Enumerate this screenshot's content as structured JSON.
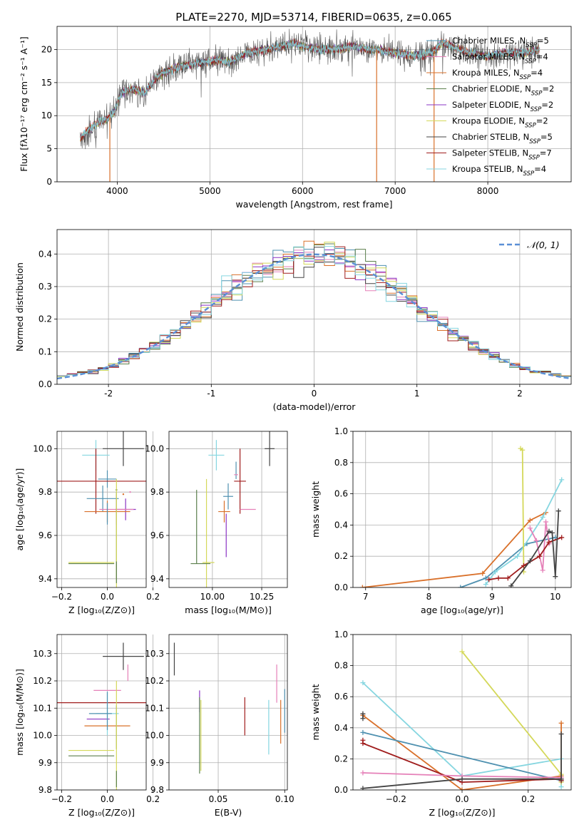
{
  "figure": {
    "title": "PLATE=2270, MJD=53714, FIBERID=0635, z=0.065"
  },
  "colors": {
    "c0": "#4f91b0",
    "c1": "#e580b8",
    "c2": "#d9702a",
    "c3": "#5b7f4c",
    "c4": "#8a34c4",
    "c5": "#d4d85a",
    "c6": "#444444",
    "c7": "#a01d1d",
    "c8": "#86d6e0",
    "normal": "#5a8fd6",
    "grid": "#b0b0b0"
  },
  "chart_data": [
    {
      "id": "spectrum",
      "type": "line",
      "xlabel": "wavelength [Angstrom, rest frame]",
      "ylabel": "Flux [fλ10⁻¹⁷ erg cm⁻² s⁻¹ A⁻¹]",
      "xlim": [
        3350,
        8900
      ],
      "ylim": [
        0,
        23.5
      ],
      "xticks": [
        4000,
        5000,
        6000,
        7000,
        8000
      ],
      "yticks": [
        0,
        5,
        10,
        15,
        20
      ],
      "legend_position": "right",
      "legend": [
        "Chabrier MILES, N_SSP=5",
        "Salpeter MILES, N_SSP=4",
        "Kroupa MILES, N_SSP=4",
        "Chabrier ELODIE, N_SSP=2",
        "Salpeter ELODIE, N_SSP=2",
        "Kroupa ELODIE, N_SSP=2",
        "Chabrier STELIB, N_SSP=5",
        "Salpeter STELIB, N_SSP=7",
        "Kroupa STELIB, N_SSP=4"
      ],
      "continuum": [
        [
          3600,
          6.5
        ],
        [
          3700,
          8.0
        ],
        [
          3800,
          9.0
        ],
        [
          3900,
          9.5
        ],
        [
          3960,
          10.5
        ],
        [
          4050,
          13.5
        ],
        [
          4150,
          14.0
        ],
        [
          4300,
          13.5
        ],
        [
          4400,
          15.5
        ],
        [
          4500,
          16.5
        ],
        [
          4700,
          17.5
        ],
        [
          4900,
          18.0
        ],
        [
          5100,
          18.5
        ],
        [
          5200,
          18.0
        ],
        [
          5400,
          19.5
        ],
        [
          5600,
          20.0
        ],
        [
          5800,
          20.5
        ],
        [
          5900,
          21.0
        ],
        [
          6000,
          20.5
        ],
        [
          6200,
          20.0
        ],
        [
          6400,
          20.0
        ],
        [
          6550,
          20.5
        ],
        [
          6700,
          20.0
        ],
        [
          6800,
          20.0
        ],
        [
          7000,
          19.5
        ],
        [
          7200,
          19.0
        ],
        [
          7400,
          19.5
        ],
        [
          7500,
          21.0
        ],
        [
          7600,
          20.5
        ],
        [
          7800,
          19.5
        ],
        [
          8000,
          19.0
        ],
        [
          8200,
          19.5
        ],
        [
          8400,
          19.5
        ],
        [
          8550,
          20.0
        ]
      ],
      "gaps": [
        3920,
        6800,
        7420
      ]
    },
    {
      "id": "residuals",
      "type": "step",
      "xlabel": "(data-model)/error",
      "ylabel": "Normed distribution",
      "xlim": [
        -2.5,
        2.5
      ],
      "ylim": [
        0,
        0.475
      ],
      "xticks": [
        -2,
        -1,
        0,
        1,
        2
      ],
      "yticks": [
        0,
        0.1,
        0.2,
        0.3,
        0.4
      ],
      "bin_width": 0.1,
      "legend_position": "top-right",
      "legend": [
        "𝒩(0, 1)"
      ]
    },
    {
      "id": "age-vs-Z",
      "type": "errorbar",
      "xlabel": "Z [log₁₀(Z/Z⊙)]",
      "ylabel": "age  [log₁₀(age/yr)]",
      "xlim": [
        -0.22,
        0.17
      ],
      "ylim": [
        9.36,
        10.08
      ],
      "xticks": [
        -0.2,
        0.0,
        0.2
      ],
      "xtick_labels": [
        "−0.2",
        "0.0",
        "0.2"
      ],
      "yticks": [
        9.4,
        9.6,
        9.8,
        10.0
      ],
      "points": [
        {
          "c": "c6",
          "x": 0.07,
          "dx": 0.18,
          "y": 10.0,
          "dy": 0.08
        },
        {
          "c": "c8",
          "x": -0.05,
          "dx": 0.12,
          "y": 9.97,
          "dy": 0.07
        },
        {
          "c": "c0",
          "x": 0.0,
          "dx": 0.08,
          "y": 9.86,
          "dy": 0.04
        },
        {
          "c": "c7",
          "x": -0.05,
          "dx": 0.45,
          "y": 9.85,
          "dy": 0.15
        },
        {
          "c": "c3",
          "x": 0.04,
          "dx": 0.0,
          "y": 9.81,
          "dy": 0.0
        },
        {
          "c": "c1",
          "x": 0.1,
          "dx": 0.0,
          "y": 9.8,
          "dy": 0.0
        },
        {
          "c": "c2",
          "x": 0.07,
          "dx": 0.0,
          "y": 9.79,
          "dy": 0.0
        },
        {
          "c": "c0",
          "x": -0.02,
          "dx": 0.14,
          "y": 9.77,
          "dy": 0.06
        },
        {
          "c": "c4",
          "x": 0.08,
          "dx": 0.09,
          "y": 9.72,
          "dy": 0.05
        },
        {
          "c": "c1",
          "x": 0.04,
          "dx": 0.15,
          "y": 9.72,
          "dy": 0.07
        },
        {
          "c": "c2",
          "x": 0.0,
          "dx": 0.2,
          "y": 9.71,
          "dy": 0.05
        },
        {
          "c": "c0",
          "x": 0.0,
          "dx": 0.0,
          "y": 9.7,
          "dy": 0.05
        },
        {
          "c": "c3",
          "x": 0.04,
          "dx": 0.0,
          "y": 9.6,
          "dy": 0.2
        },
        {
          "c": "c5",
          "x": 0.04,
          "dx": 0.0,
          "y": 9.56,
          "dy": 0.3
        },
        {
          "c": "c3",
          "x": -0.07,
          "dx": 0.2,
          "y": 9.47,
          "dy": 0.0
        },
        {
          "c": "c5",
          "x": -0.07,
          "dx": 0.2,
          "y": 9.475,
          "dy": 0.0
        },
        {
          "c": "c3",
          "x": 0.04,
          "dx": 0.0,
          "y": 9.43,
          "dy": 0.05
        }
      ]
    },
    {
      "id": "age-vs-mass",
      "type": "errorbar",
      "xlabel": "mass [log₁₀(M/M⊙)]",
      "ylabel": "",
      "xlim": [
        9.78,
        10.38
      ],
      "ylim": [
        9.36,
        10.08
      ],
      "xticks": [
        10.0,
        10.25
      ],
      "xtick_labels": [
        "10.00",
        "10.25"
      ],
      "yticks": [
        9.4,
        9.6,
        9.8,
        10.0
      ],
      "points": [
        {
          "c": "c6",
          "x": 10.29,
          "dx": 0.05,
          "y": 10.0,
          "dy": 0.08
        },
        {
          "c": "c8",
          "x": 10.02,
          "dx": 0.08,
          "y": 9.97,
          "dy": 0.07
        },
        {
          "c": "c0",
          "x": 10.12,
          "dx": 0.0,
          "y": 9.9,
          "dy": 0.04
        },
        {
          "c": "c1",
          "x": 10.12,
          "dx": 0.02,
          "y": 9.88,
          "dy": 0.0
        },
        {
          "c": "c7",
          "x": 10.14,
          "dx": 0.06,
          "y": 9.85,
          "dy": 0.15
        },
        {
          "c": "c3",
          "x": 9.92,
          "dx": 0.0,
          "y": 9.64,
          "dy": 0.17
        },
        {
          "c": "c0",
          "x": 10.08,
          "dx": 0.05,
          "y": 9.78,
          "dy": 0.06
        },
        {
          "c": "c2",
          "x": 10.06,
          "dx": 0.06,
          "y": 9.71,
          "dy": 0.05
        },
        {
          "c": "c4",
          "x": 10.07,
          "dx": 0.0,
          "y": 9.6,
          "dy": 0.1
        },
        {
          "c": "c1",
          "x": 10.18,
          "dx": 0.08,
          "y": 9.72,
          "dy": 0.0
        },
        {
          "c": "c5",
          "x": 9.97,
          "dx": 0.0,
          "y": 9.58,
          "dy": 0.28
        },
        {
          "c": "c3",
          "x": 9.94,
          "dx": 0.1,
          "y": 9.47,
          "dy": 0.0
        },
        {
          "c": "c5",
          "x": 9.98,
          "dx": 0.06,
          "y": 9.475,
          "dy": 0.0
        }
      ]
    },
    {
      "id": "weight-vs-age",
      "type": "line",
      "xlabel": "age  [log₁₀(age/yr)]",
      "ylabel": "mass weight",
      "xlim": [
        6.8,
        10.25
      ],
      "ylim": [
        0,
        1.0
      ],
      "xticks": [
        7,
        8,
        9,
        10
      ],
      "yticks": [
        0,
        0.2,
        0.4,
        0.6,
        0.8,
        1.0
      ],
      "series": [
        {
          "c": "c2",
          "x": [
            6.95,
            8.85,
            9.6,
            9.85
          ],
          "y": [
            0.0,
            0.09,
            0.43,
            0.48
          ]
        },
        {
          "c": "c0",
          "x": [
            8.5,
            8.9,
            9.55,
            10.0
          ],
          "y": [
            0.0,
            0.06,
            0.28,
            0.32
          ]
        },
        {
          "c": "c8",
          "x": [
            8.9,
            9.05,
            9.4,
            9.8,
            10.1
          ],
          "y": [
            0.02,
            0.1,
            0.2,
            0.45,
            0.69
          ]
        },
        {
          "c": "c5",
          "x": [
            9.45,
            9.48,
            9.5
          ],
          "y": [
            0.89,
            0.88,
            0.1
          ]
        },
        {
          "c": "c1",
          "x": [
            9.6,
            9.7,
            9.8,
            9.85,
            9.9
          ],
          "y": [
            0.38,
            0.3,
            0.11,
            0.42,
            0.28
          ]
        },
        {
          "c": "c7",
          "x": [
            8.95,
            9.1,
            9.25,
            9.5,
            9.75,
            9.9,
            10.1
          ],
          "y": [
            0.05,
            0.06,
            0.06,
            0.14,
            0.2,
            0.29,
            0.32
          ]
        },
        {
          "c": "c6",
          "x": [
            9.3,
            9.6,
            9.9,
            9.95,
            10.0,
            10.05
          ],
          "y": [
            0.01,
            0.17,
            0.36,
            0.35,
            0.07,
            0.49
          ]
        }
      ]
    },
    {
      "id": "mass-vs-Z",
      "type": "errorbar",
      "xlabel": "Z [log₁₀(Z/Z⊙)]",
      "ylabel": "mass [log₁₀(M/M⊙)]",
      "xlim": [
        -0.22,
        0.17
      ],
      "ylim": [
        9.8,
        10.37
      ],
      "xticks": [
        -0.2,
        0.0,
        0.2
      ],
      "xtick_labels": [
        "−0.2",
        "0.0",
        "0.2"
      ],
      "yticks": [
        9.8,
        9.9,
        10.0,
        10.1,
        10.2,
        10.3
      ],
      "points": [
        {
          "c": "c6",
          "x": 0.07,
          "dx": 0.18,
          "y": 10.29,
          "dy": 0.05
        },
        {
          "c": "c1",
          "x": 0.09,
          "dx": 0.0,
          "y": 10.23,
          "dy": 0.03
        },
        {
          "c": "c1",
          "x": 0.0,
          "dx": 0.12,
          "y": 10.165,
          "dy": 0.0
        },
        {
          "c": "c7",
          "x": -0.05,
          "dx": 0.45,
          "y": 10.12,
          "dy": 0.0
        },
        {
          "c": "c4",
          "x": -0.04,
          "dx": 0.1,
          "y": 10.06,
          "dy": 0.0
        },
        {
          "c": "c8",
          "x": 0.0,
          "dx": 0.1,
          "y": 10.08,
          "dy": 0.08
        },
        {
          "c": "c0",
          "x": -0.03,
          "dx": 0.1,
          "y": 10.08,
          "dy": 0.0
        },
        {
          "c": "c2",
          "x": 0.0,
          "dx": 0.2,
          "y": 10.035,
          "dy": 0.0
        },
        {
          "c": "c0",
          "x": 0.0,
          "dx": 0.0,
          "y": 10.09,
          "dy": 0.07
        },
        {
          "c": "c3",
          "x": 0.04,
          "dx": 0.0,
          "y": 10.03,
          "dy": 0.08
        },
        {
          "c": "c5",
          "x": 0.04,
          "dx": 0.0,
          "y": 10.0,
          "dy": 0.2
        },
        {
          "c": "c5",
          "x": -0.07,
          "dx": 0.2,
          "y": 9.945,
          "dy": 0.0
        },
        {
          "c": "c3",
          "x": -0.07,
          "dx": 0.2,
          "y": 9.925,
          "dy": 0.0
        },
        {
          "c": "c3",
          "x": 0.04,
          "dx": 0.0,
          "y": 9.84,
          "dy": 0.03
        }
      ]
    },
    {
      "id": "mass-vs-EBV",
      "type": "errorbar",
      "xlabel": "E(B-V)",
      "ylabel": "",
      "xlim": [
        0.013,
        0.102
      ],
      "ylim": [
        9.8,
        10.37
      ],
      "xticks": [
        0.05,
        0.1
      ],
      "xtick_labels": [
        "0.05",
        "0.10"
      ],
      "yticks": [
        9.8,
        9.9,
        10.0,
        10.1,
        10.2,
        10.3
      ],
      "points": [
        {
          "c": "c6",
          "x": 0.017,
          "dx": 0.0,
          "y": 10.28,
          "dy": 0.06
        },
        {
          "c": "c4",
          "x": 0.036,
          "dx": 0.0,
          "y": 10.125,
          "dy": 0.04
        },
        {
          "c": "c3",
          "x": 0.036,
          "dx": 0.0,
          "y": 10.0,
          "dy": 0.14
        },
        {
          "c": "c5",
          "x": 0.037,
          "dx": 0.0,
          "y": 10.0,
          "dy": 0.13
        },
        {
          "c": "c7",
          "x": 0.07,
          "dx": 0.0,
          "y": 10.07,
          "dy": 0.07
        },
        {
          "c": "c8",
          "x": 0.088,
          "dx": 0.0,
          "y": 10.03,
          "dy": 0.1
        },
        {
          "c": "c1",
          "x": 0.094,
          "dx": 0.0,
          "y": 10.19,
          "dy": 0.07
        },
        {
          "c": "c2",
          "x": 0.097,
          "dx": 0.0,
          "y": 10.05,
          "dy": 0.08
        },
        {
          "c": "c0",
          "x": 0.1,
          "dx": 0.0,
          "y": 10.09,
          "dy": 0.08
        }
      ]
    },
    {
      "id": "weight-vs-Z",
      "type": "line",
      "xlabel": "Z [log₁₀(Z/Z⊙)]",
      "ylabel": "mass weight",
      "xlim": [
        -0.33,
        0.33
      ],
      "ylim": [
        0,
        1.0
      ],
      "xticks": [
        -0.2,
        0.0,
        0.2
      ],
      "xtick_labels": [
        "−0.2",
        "0.0",
        "0.2"
      ],
      "yticks": [
        0,
        0.2,
        0.4,
        0.6,
        0.8,
        1.0
      ],
      "series": [
        {
          "c": "c8",
          "x": [
            -0.3,
            0.0,
            0.3,
            0.3
          ],
          "y": [
            0.69,
            0.09,
            0.2,
            0.02
          ]
        },
        {
          "c": "c5",
          "x": [
            0.0,
            0.3,
            0.3
          ],
          "y": [
            0.89,
            0.1,
            0.05
          ]
        },
        {
          "c": "c2",
          "x": [
            -0.3,
            0.0,
            0.3,
            0.3
          ],
          "y": [
            0.48,
            0.0,
            0.09,
            0.43
          ]
        },
        {
          "c": "c0",
          "x": [
            -0.3,
            0.3
          ],
          "y": [
            0.37,
            0.06
          ]
        },
        {
          "c": "c7",
          "x": [
            -0.3,
            -0.3,
            0.0,
            0.3,
            0.3
          ],
          "y": [
            0.32,
            0.3,
            0.05,
            0.07,
            0.06
          ]
        },
        {
          "c": "c1",
          "x": [
            -0.3,
            0.0,
            0.3
          ],
          "y": [
            0.11,
            0.09,
            0.08
          ]
        },
        {
          "c": "c6",
          "x": [
            -0.3,
            0.0,
            0.3,
            0.3
          ],
          "y": [
            0.01,
            0.07,
            0.07,
            0.36
          ]
        },
        {
          "c": "c6",
          "x": [
            -0.3,
            -0.3
          ],
          "y": [
            0.49,
            0.46
          ]
        }
      ]
    }
  ]
}
